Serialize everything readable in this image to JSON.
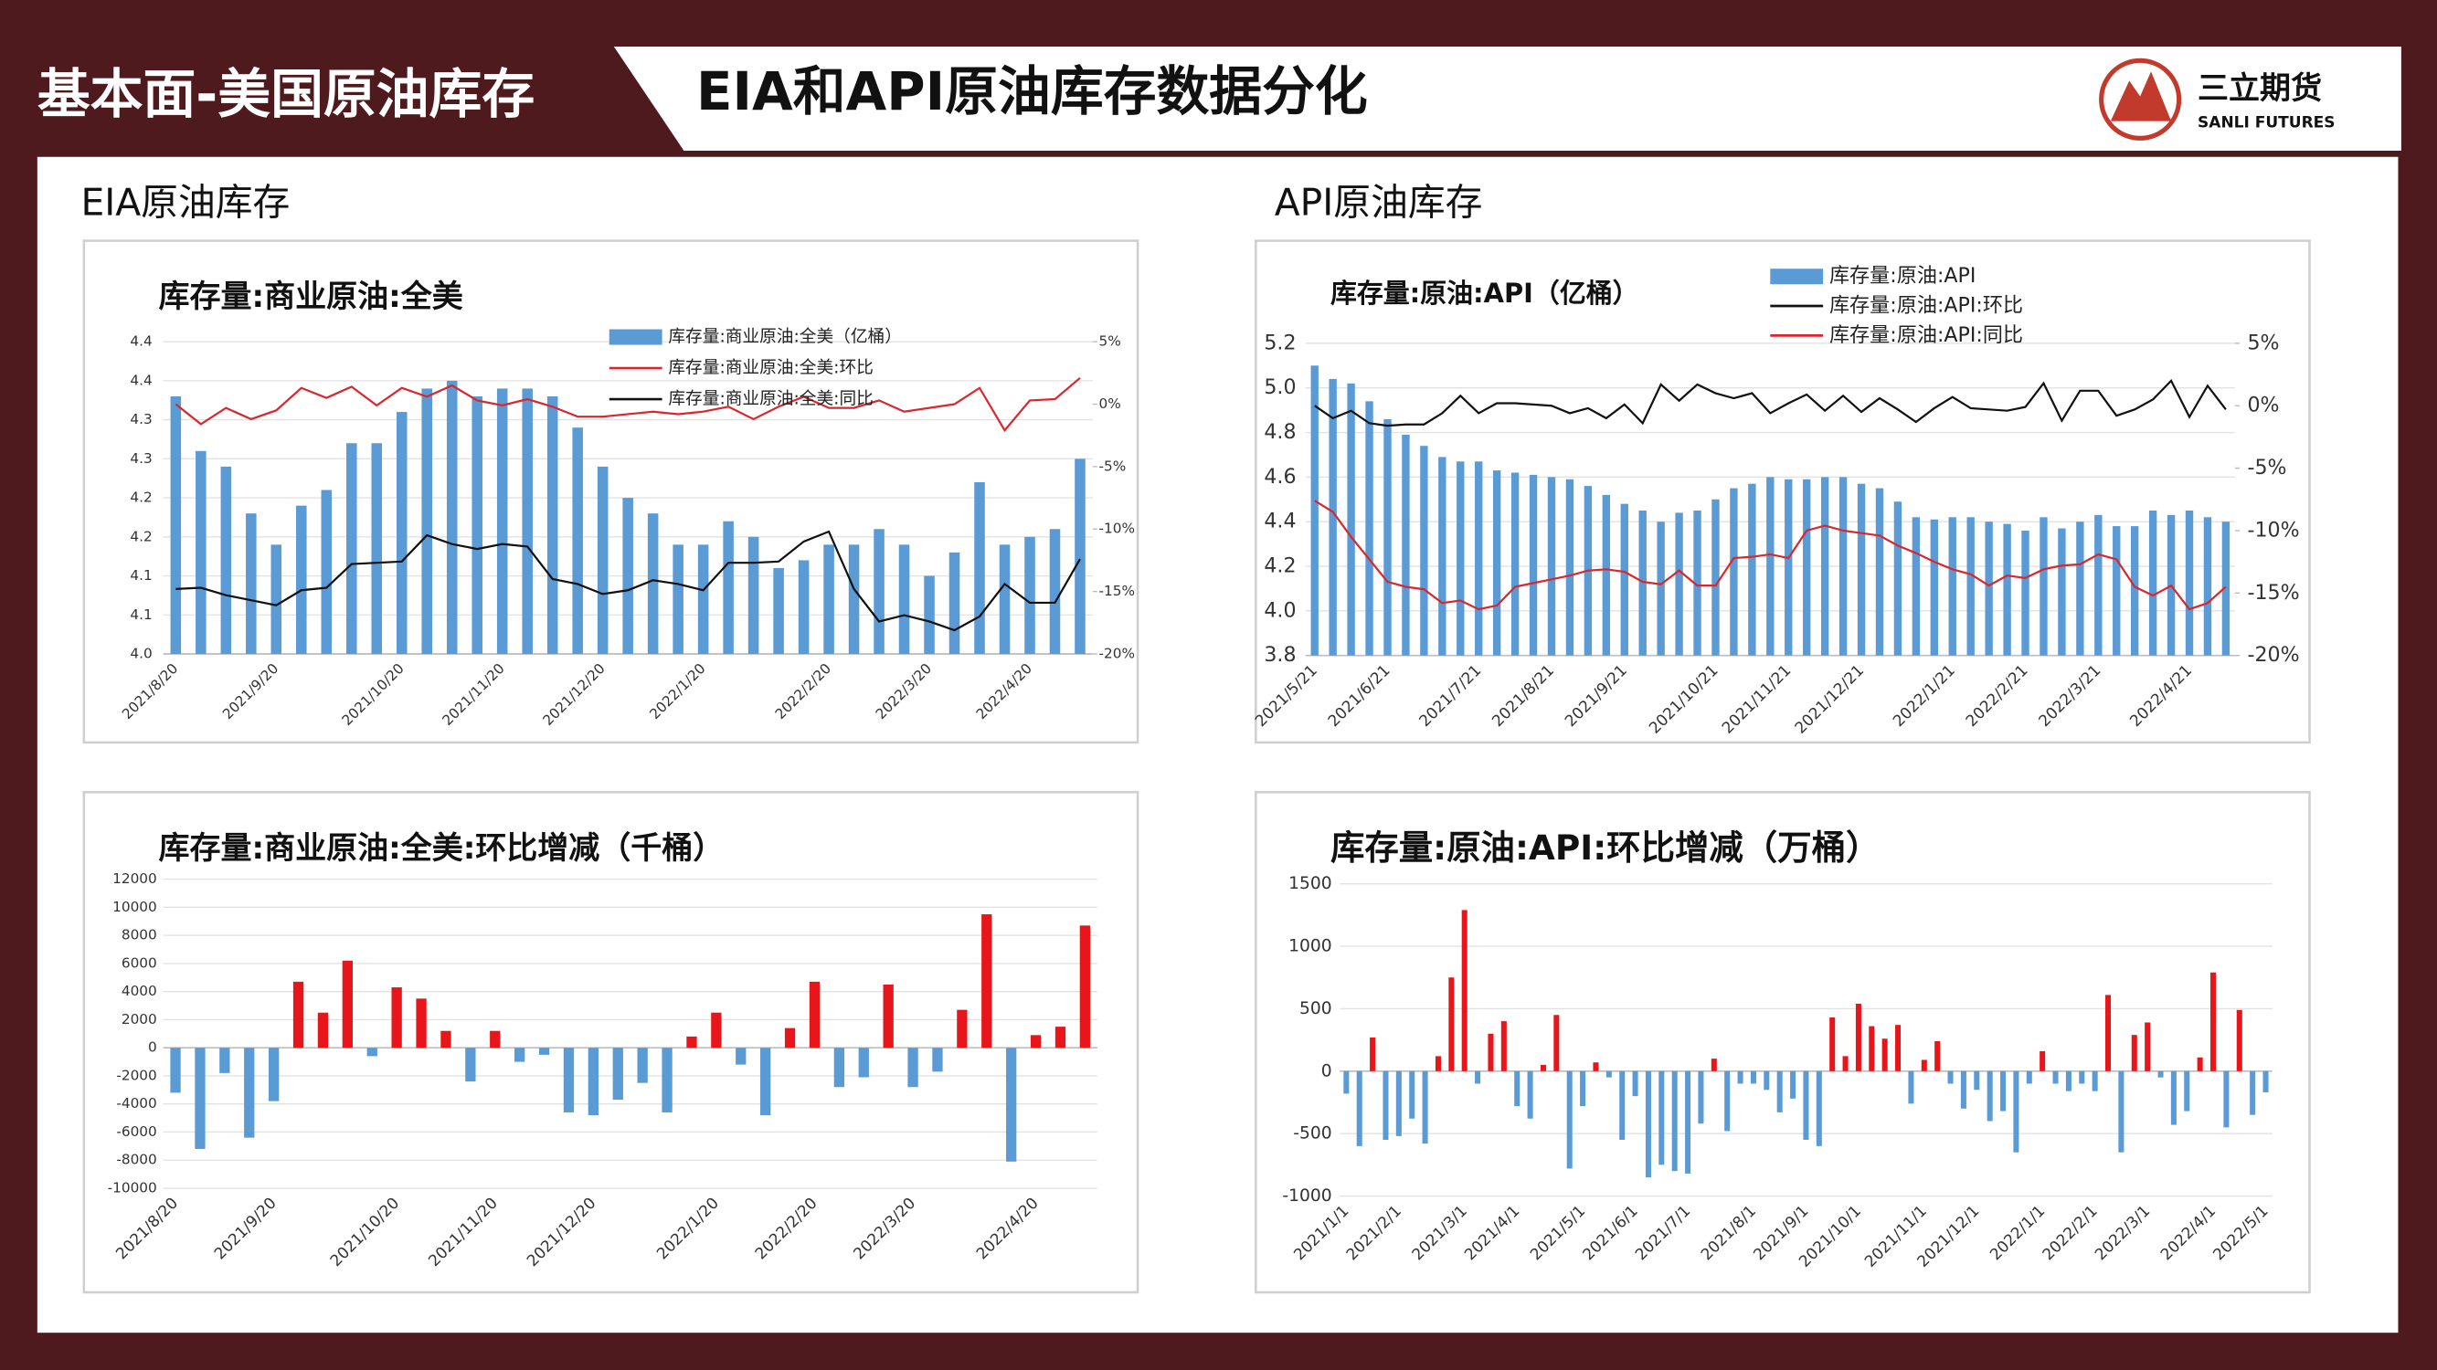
{
  "header": {
    "section": "基本面-美国原油库存",
    "title": "EIA和API原油库存数据分化",
    "logo_cn": "三立期货",
    "logo_en": "SANLI FUTURES"
  },
  "sections": [
    "EIA原油库存",
    "API原油库存"
  ],
  "chart_data": [
    {
      "type": "bar_line",
      "title": "库存量:商业原油:全美",
      "legend": "upper right",
      "grid": true,
      "categories": [
        "2021/8/20",
        null,
        null,
        null,
        "2021/9/20",
        null,
        null,
        null,
        null,
        "2021/10/20",
        null,
        null,
        null,
        "2021/11/20",
        null,
        null,
        null,
        "2021/12/20",
        null,
        null,
        null,
        "2022/1/20",
        null,
        null,
        null,
        null,
        "2022/2/20",
        null,
        null,
        null,
        "2022/3/20",
        null,
        null,
        null,
        "2022/4/20",
        null,
        null
      ],
      "ylim": [
        4.0,
        4.4
      ],
      "yticks": [
        {
          "value": 4.0,
          "label": "4.0"
        },
        {
          "value": 4.05,
          "label": "4.1"
        },
        4.1,
        {
          "value": 4.15,
          "label": "4.2"
        },
        4.2,
        {
          "value": 4.25,
          "label": "4.3"
        },
        4.3,
        {
          "value": 4.35,
          "label": "4.4"
        },
        4.4
      ],
      "y2lim": [
        -20,
        5
      ],
      "y2ticks": [
        {
          "value": -20,
          "label": "-20%"
        },
        {
          "value": -15,
          "label": "-15%"
        },
        {
          "value": -10,
          "label": "-10%"
        },
        {
          "value": -5,
          "label": "-5%"
        },
        {
          "value": 0,
          "label": "0%"
        },
        {
          "value": 5,
          "label": "5%"
        }
      ],
      "series": [
        {
          "name": "库存量:商业原油:全美（亿桶）",
          "type": "bar",
          "color": "#5b9bd5",
          "values": [
            4.33,
            4.26,
            4.24,
            4.18,
            4.14,
            4.19,
            4.21,
            4.27,
            4.27,
            4.31,
            4.34,
            4.35,
            4.33,
            4.34,
            4.34,
            4.33,
            4.29,
            4.24,
            4.2,
            4.18,
            4.14,
            4.14,
            4.17,
            4.15,
            4.11,
            4.12,
            4.14,
            4.14,
            4.16,
            4.14,
            4.1,
            4.13,
            4.22,
            4.14,
            4.15,
            4.16,
            4.25
          ]
        },
        {
          "name": "库存量:商业原油:全美:环比",
          "type": "line",
          "axis": "y2",
          "color": "#d9272e",
          "values": [
            0,
            -1.6,
            -0.3,
            -1.2,
            -0.5,
            1.3,
            0.5,
            1.4,
            -0.1,
            1.3,
            0.6,
            1.5,
            0.3,
            -0.1,
            0.4,
            -0.2,
            -1.0,
            -1.0,
            -0.8,
            -0.6,
            -0.8,
            -0.6,
            -0.2,
            -1.2,
            -0.2,
            0.6,
            -0.3,
            -0.3,
            0.3,
            -0.6,
            -0.3,
            0,
            1.3,
            -2.1,
            0.3,
            0.4,
            2.1
          ]
        },
        {
          "name": "库存量:商业原油:全美:同比",
          "type": "line",
          "axis": "y2",
          "color": "#111111",
          "values": [
            -14.8,
            -14.7,
            -15.3,
            -15.7,
            -16.1,
            -14.9,
            -14.7,
            -12.8,
            -12.7,
            -12.6,
            -10.5,
            -11.2,
            -11.6,
            -11.2,
            -11.4,
            -14.0,
            -14.4,
            -15.2,
            -14.9,
            -14.1,
            -14.4,
            -14.9,
            -12.7,
            -12.7,
            -12.6,
            -11.0,
            -10.2,
            -14.8,
            -17.4,
            -16.9,
            -17.4,
            -18.1,
            -17.0,
            -14.4,
            -15.9,
            -15.9,
            -12.4
          ]
        }
      ]
    },
    {
      "type": "bar_line",
      "title": "库存量:原油:API（亿桶）",
      "legend": "upper right",
      "grid": true,
      "categories": [
        "2021/5/21",
        null,
        null,
        null,
        "2021/6/21",
        null,
        null,
        null,
        null,
        "2021/7/21",
        null,
        null,
        null,
        "2021/8/21",
        null,
        null,
        null,
        "2021/9/21",
        null,
        null,
        null,
        null,
        "2021/10/21",
        null,
        null,
        null,
        "2021/11/21",
        null,
        null,
        null,
        "2021/12/21",
        null,
        null,
        null,
        null,
        "2022/1/21",
        null,
        null,
        null,
        "2022/2/21",
        null,
        null,
        null,
        "2022/3/21",
        null,
        null,
        null,
        null,
        "2022/4/21",
        null,
        null
      ],
      "ylim": [
        3.8,
        5.2
      ],
      "yticks": [
        3.8,
        {
          "value": 4.0,
          "label": "4.0"
        },
        4.2,
        4.4,
        4.6,
        4.8,
        {
          "value": 5.0,
          "label": "5.0"
        },
        5.2
      ],
      "y2lim": [
        -20,
        5
      ],
      "y2ticks": [
        {
          "value": -20,
          "label": "-20%"
        },
        {
          "value": -15,
          "label": "-15%"
        },
        {
          "value": -10,
          "label": "-10%"
        },
        {
          "value": -5,
          "label": "-5%"
        },
        {
          "value": 0,
          "label": "0%"
        },
        {
          "value": 5,
          "label": "5%"
        }
      ],
      "series": [
        {
          "name": "库存量:原油:API",
          "type": "bar",
          "color": "#5b9bd5",
          "values": [
            5.1,
            5.04,
            5.02,
            4.94,
            4.86,
            4.79,
            4.74,
            4.69,
            4.67,
            4.67,
            4.63,
            4.62,
            4.61,
            4.6,
            4.59,
            4.56,
            4.52,
            4.48,
            4.45,
            4.4,
            4.44,
            4.45,
            4.5,
            4.55,
            4.57,
            4.6,
            4.59,
            4.59,
            4.6,
            4.6,
            4.57,
            4.55,
            4.49,
            4.42,
            4.41,
            4.42,
            4.42,
            4.4,
            4.39,
            4.36,
            4.42,
            4.37,
            4.4,
            4.43,
            4.38,
            4.38,
            4.45,
            4.43,
            4.45,
            4.42,
            4.4
          ]
        },
        {
          "name": "库存量:原油:API:环比",
          "type": "line",
          "axis": "y2",
          "color": "#111111",
          "values": [
            0,
            -1,
            -0.4,
            -1.4,
            -1.6,
            -1.5,
            -1.5,
            -0.6,
            0.8,
            -0.6,
            0.2,
            0.2,
            0.1,
            0,
            -0.6,
            -0.2,
            -1,
            0.1,
            -1.4,
            1.7,
            0.4,
            1.7,
            1,
            0.6,
            1,
            -0.6,
            0.2,
            0.9,
            -0.4,
            0.8,
            -0.5,
            0.6,
            -0.3,
            -1.3,
            -0.2,
            0.7,
            -0.2,
            -0.3,
            -0.4,
            -0.1,
            1.8,
            -1.2,
            1.2,
            1.2,
            -0.8,
            -0.3,
            0.5,
            2,
            -0.9,
            1.6,
            -0.3
          ]
        },
        {
          "name": "库存量:原油:API:同比",
          "type": "line",
          "axis": "y2",
          "color": "#d9272e",
          "values": [
            -7.6,
            -8.5,
            -10.5,
            -12.3,
            -14.1,
            -14.5,
            -14.7,
            -15.8,
            -15.6,
            -16.3,
            -16,
            -14.5,
            -14.2,
            -13.9,
            -13.6,
            -13.2,
            -13.1,
            -13.3,
            -14.1,
            -14.3,
            -13.2,
            -14.4,
            -14.4,
            -12.2,
            -12.1,
            -11.9,
            -12.2,
            -10,
            -9.6,
            -10,
            -10.2,
            -10.4,
            -11.2,
            -11.8,
            -12.5,
            -13.1,
            -13.5,
            -14.4,
            -13.6,
            -13.8,
            -13.1,
            -12.8,
            -12.7,
            -11.9,
            -12.3,
            -14.5,
            -15.2,
            -14.4,
            -16.3,
            -15.8,
            -14.5
          ]
        }
      ]
    },
    {
      "type": "bar",
      "title": "库存量:商业原油:全美:环比增减（千桶）",
      "grid": true,
      "positive_color": "#e8161b",
      "negative_color": "#5b9bd5",
      "categories": [
        "2021/8/20",
        null,
        null,
        null,
        "2021/9/20",
        null,
        null,
        null,
        null,
        "2021/10/20",
        null,
        null,
        null,
        "2021/11/20",
        null,
        null,
        null,
        "2021/12/20",
        null,
        null,
        null,
        null,
        "2022/1/20",
        null,
        null,
        null,
        "2022/2/20",
        null,
        null,
        null,
        "2022/3/20",
        null,
        null,
        null,
        null,
        "2022/4/20",
        null,
        null
      ],
      "ylim": [
        -10000,
        12000
      ],
      "yticks": [
        -10000,
        -8000,
        -6000,
        -4000,
        -2000,
        0,
        2000,
        4000,
        6000,
        8000,
        10000,
        12000
      ],
      "values": [
        -3200,
        -7200,
        -1800,
        -6400,
        -3800,
        4700,
        2500,
        6200,
        -600,
        4300,
        3500,
        1200,
        -2400,
        1200,
        -1000,
        -500,
        -4600,
        -4800,
        -3700,
        -2500,
        -4600,
        800,
        2500,
        -1200,
        -4800,
        1400,
        4700,
        -2800,
        -2100,
        4500,
        -2800,
        -1700,
        2700,
        9500,
        -8100,
        900,
        1500,
        8700
      ]
    },
    {
      "type": "bar",
      "title": "库存量:原油:API:环比增减（万桶）",
      "grid": true,
      "positive_color": "#e8161b",
      "negative_color": "#5b9bd5",
      "categories": [
        "2021/1/1",
        null,
        null,
        null,
        "2021/2/1",
        null,
        null,
        null,
        null,
        "2021/3/1",
        null,
        null,
        null,
        "2021/4/1",
        null,
        null,
        null,
        null,
        "2021/5/1",
        null,
        null,
        null,
        "2021/6/1",
        null,
        null,
        null,
        "2021/7/1",
        null,
        null,
        null,
        null,
        "2021/8/1",
        null,
        null,
        null,
        "2021/9/1",
        null,
        null,
        null,
        "2021/10/1",
        null,
        null,
        null,
        null,
        "2021/11/1",
        null,
        null,
        null,
        "2021/12/1",
        null,
        null,
        null,
        null,
        "2022/1/1",
        null,
        null,
        null,
        "2022/2/1",
        null,
        null,
        null,
        "2022/3/1",
        null,
        null,
        null,
        null,
        "2022/4/1",
        null,
        null,
        null,
        "2022/5/1"
      ],
      "ylim": [
        -1000,
        1500
      ],
      "yticks": [
        -1000,
        -500,
        0,
        500,
        1000,
        1500
      ],
      "values": [
        -180,
        -600,
        270,
        -550,
        -520,
        -380,
        -580,
        120,
        750,
        1290,
        -100,
        300,
        400,
        -280,
        -380,
        50,
        450,
        -780,
        -280,
        70,
        -50,
        -550,
        -200,
        -850,
        -750,
        -800,
        -820,
        -420,
        100,
        -480,
        -100,
        -100,
        -150,
        -330,
        -220,
        -550,
        -600,
        430,
        120,
        540,
        360,
        260,
        370,
        -260,
        90,
        240,
        -100,
        -300,
        -150,
        -400,
        -320,
        -650,
        -100,
        160,
        -100,
        -160,
        -100,
        -160,
        610,
        -650,
        290,
        390,
        -50,
        -430,
        -320,
        110,
        790,
        -450,
        490,
        -350,
        -170
      ]
    }
  ]
}
